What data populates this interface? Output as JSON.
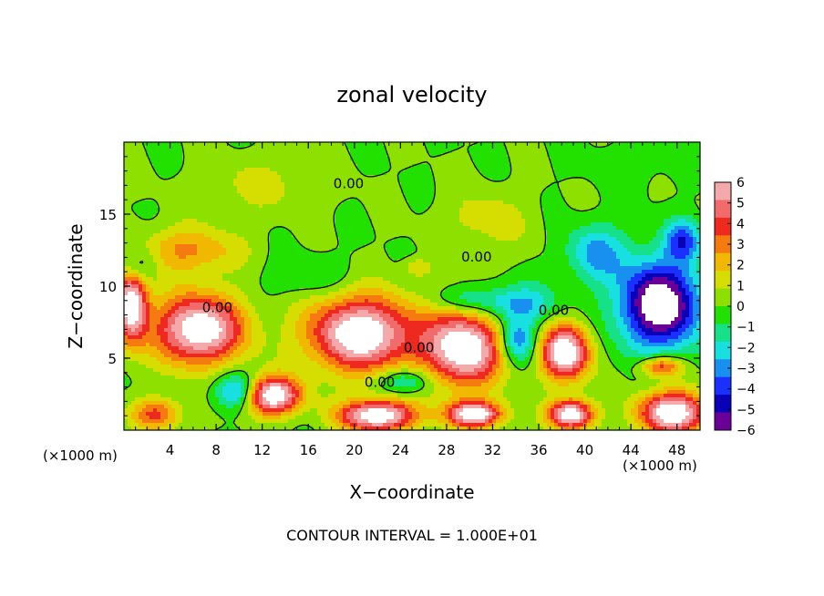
{
  "chart_data": {
    "type": "heatmap",
    "title": "zonal velocity",
    "xlabel": "X−coordinate",
    "ylabel": "Z−coordinate",
    "x_unit_left": "(×1000 m)",
    "x_unit_right": "(×1000 m)",
    "footer": "CONTOUR INTERVAL = 1.000E+01",
    "xlim": [
      0,
      50
    ],
    "ylim": [
      0,
      20
    ],
    "xticks": [
      4,
      8,
      12,
      16,
      20,
      24,
      28,
      32,
      36,
      40,
      44,
      48
    ],
    "xtick_labels": [
      "4",
      "8",
      "12",
      "16",
      "20",
      "24",
      "28",
      "32",
      "36",
      "40",
      "44",
      "48"
    ],
    "yticks": [
      5,
      10,
      15
    ],
    "ytick_labels": [
      "5",
      "10",
      "15"
    ],
    "contour_labels": [
      {
        "text": "0.00",
        "x": 19.5,
        "y": 16.8
      },
      {
        "text": "0.00",
        "x": 30.6,
        "y": 11.7
      },
      {
        "text": "0.00",
        "x": 8.1,
        "y": 8.2
      },
      {
        "text": "0.00",
        "x": 37.3,
        "y": 8.0
      },
      {
        "text": "0.00",
        "x": 25.6,
        "y": 5.4
      },
      {
        "text": "0.00",
        "x": 22.2,
        "y": 3.0
      }
    ],
    "grid": false,
    "colorbar": {
      "min": -6,
      "max": 6,
      "ticks": [
        6,
        5,
        4,
        3,
        2,
        1,
        0,
        -1,
        -2,
        -3,
        -4,
        -5,
        -6
      ],
      "tick_labels": [
        "6",
        "5",
        "4",
        "3",
        "2",
        "1",
        "0",
        "−1",
        "−2",
        "−3",
        "−4",
        "−5",
        "−6"
      ],
      "colors": [
        "#f4aaaa",
        "#f26b6b",
        "#ee2a20",
        "#f57a10",
        "#f0b800",
        "#d6dd00",
        "#8ee000",
        "#22e000",
        "#16e088",
        "#18e0e0",
        "#1890f0",
        "#1a30ff",
        "#0a00b8",
        "#6a0098"
      ]
    },
    "features": [
      {
        "type": "high",
        "x": 6.5,
        "y": 7.0,
        "rx": 3.8,
        "ry": 2.4,
        "value": 8
      },
      {
        "type": "high",
        "x": 20.6,
        "y": 6.7,
        "rx": 4.6,
        "ry": 2.6,
        "value": 8
      },
      {
        "type": "high",
        "x": 29.5,
        "y": 5.7,
        "rx": 3.4,
        "ry": 2.6,
        "value": 8
      },
      {
        "type": "high",
        "x": 38.3,
        "y": 5.4,
        "rx": 2.1,
        "ry": 1.9,
        "value": 8
      },
      {
        "type": "high",
        "x": 12.9,
        "y": 2.4,
        "rx": 2.4,
        "ry": 1.3,
        "value": 8
      },
      {
        "type": "high",
        "x": 22.0,
        "y": 1.0,
        "rx": 3.3,
        "ry": 1.1,
        "value": 8
      },
      {
        "type": "high",
        "x": 47.7,
        "y": 1.2,
        "rx": 3.0,
        "ry": 1.5,
        "value": 8
      },
      {
        "type": "high",
        "x": 0.6,
        "y": 8.8,
        "rx": 1.4,
        "ry": 2.6,
        "value": 8
      },
      {
        "type": "high",
        "x": 2.8,
        "y": 1.1,
        "rx": 2.2,
        "ry": 1.1,
        "value": 4
      },
      {
        "type": "high",
        "x": 30.4,
        "y": 1.1,
        "rx": 2.4,
        "ry": 0.9,
        "value": 8
      },
      {
        "type": "high",
        "x": 38.8,
        "y": 1.1,
        "rx": 1.9,
        "ry": 1.0,
        "value": 8
      },
      {
        "type": "high",
        "x": 46.6,
        "y": 4.4,
        "rx": 1.8,
        "ry": 0.7,
        "value": 5
      },
      {
        "type": "high",
        "x": 5.5,
        "y": 12.5,
        "rx": 4.5,
        "ry": 1.6,
        "value": 3
      },
      {
        "type": "high",
        "x": 25.5,
        "y": 11.3,
        "rx": 1.2,
        "ry": 0.6,
        "value": 2
      },
      {
        "type": "low",
        "x": 46.5,
        "y": 8.7,
        "rx": 3.5,
        "ry": 3.0,
        "value": -8
      },
      {
        "type": "low",
        "x": 34.2,
        "y": 8.7,
        "rx": 3.2,
        "ry": 1.4,
        "value": -3
      },
      {
        "type": "low",
        "x": 34.2,
        "y": 6.2,
        "rx": 1.6,
        "ry": 1.5,
        "value": -4
      },
      {
        "type": "low",
        "x": 16.0,
        "y": 10.6,
        "rx": 3.6,
        "ry": 1.4,
        "value": -1.2
      },
      {
        "type": "low",
        "x": 29.8,
        "y": 9.0,
        "rx": 3.2,
        "ry": 0.9,
        "value": -2
      },
      {
        "type": "low",
        "x": 9.7,
        "y": 2.7,
        "rx": 1.8,
        "ry": 1.2,
        "value": -4
      },
      {
        "type": "low",
        "x": 24.4,
        "y": 3.4,
        "rx": 2.2,
        "ry": 0.9,
        "value": -3
      },
      {
        "type": "low",
        "x": 1.0,
        "y": 11.5,
        "rx": 1.6,
        "ry": 1.3,
        "value": -3
      },
      {
        "type": "low",
        "x": 41.0,
        "y": 12.3,
        "rx": 2.6,
        "ry": 2.0,
        "value": -3
      },
      {
        "type": "low",
        "x": 48.5,
        "y": 13.2,
        "rx": 1.5,
        "ry": 1.4,
        "value": -4
      },
      {
        "type": "high",
        "x": 31.5,
        "y": 14.5,
        "rx": 4.0,
        "ry": 2.2,
        "value": 1.4
      },
      {
        "type": "high",
        "x": 12.0,
        "y": 17.0,
        "rx": 5.5,
        "ry": 2.0,
        "value": 1.2
      },
      {
        "type": "low",
        "x": 44.0,
        "y": 18.5,
        "rx": 4.0,
        "ry": 1.5,
        "value": -0.6
      }
    ]
  }
}
